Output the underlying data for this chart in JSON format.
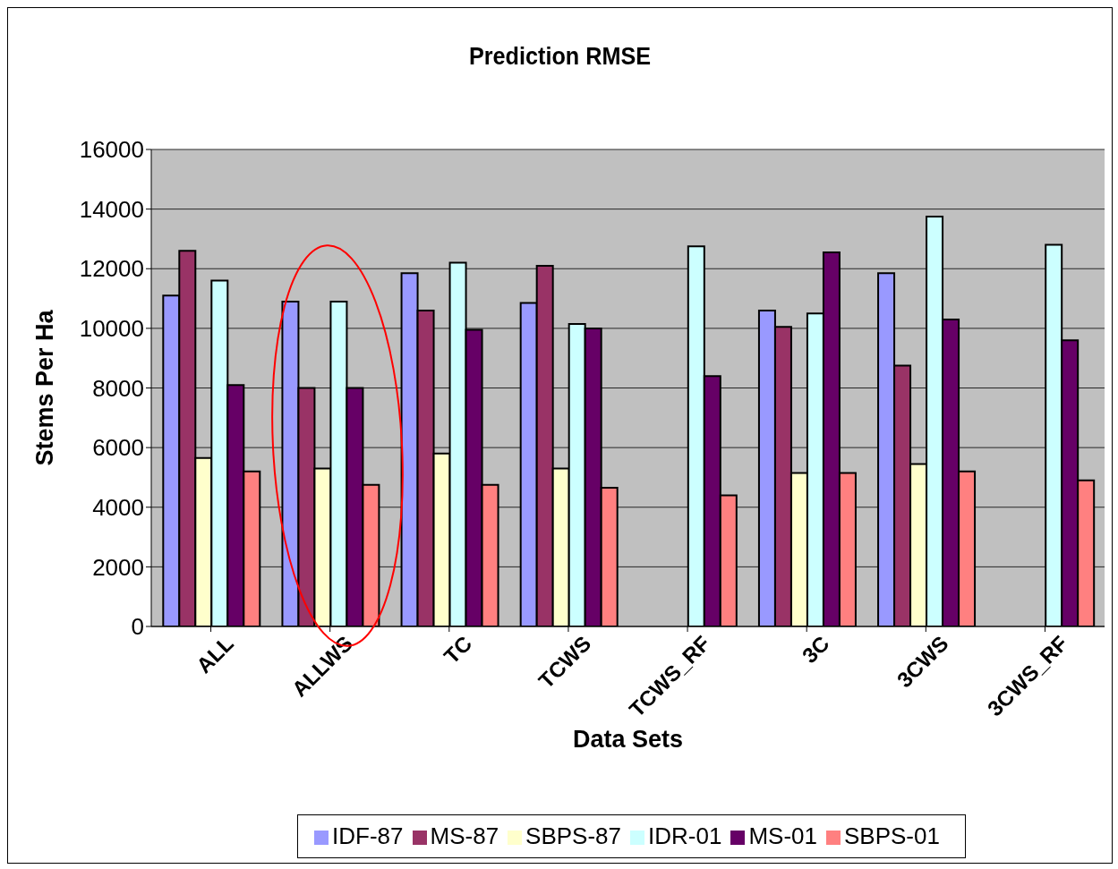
{
  "chart_data": {
    "type": "bar",
    "title": "Prediction RMSE",
    "xlabel": "Data Sets",
    "ylabel": "Stems Per Ha",
    "categories": [
      "ALL",
      "ALLWS",
      "TC",
      "TCWS",
      "TCWS_RF",
      "3C",
      "3CWS",
      "3CWS_RF"
    ],
    "series": [
      {
        "name": "IDF-87",
        "color": "#9999ff",
        "values": [
          11100,
          10900,
          11850,
          10850,
          null,
          10600,
          11850,
          null
        ]
      },
      {
        "name": "MS-87",
        "color": "#993366",
        "values": [
          12600,
          8000,
          10600,
          12100,
          null,
          10050,
          8750,
          null
        ]
      },
      {
        "name": "SBPS-87",
        "color": "#ffffcc",
        "values": [
          5650,
          5300,
          5800,
          5300,
          null,
          5150,
          5450,
          null
        ]
      },
      {
        "name": "IDR-01",
        "color": "#ccffff",
        "values": [
          11600,
          10900,
          12200,
          10150,
          12750,
          10500,
          13750,
          12800
        ]
      },
      {
        "name": "MS-01",
        "color": "#660066",
        "values": [
          8100,
          8000,
          9950,
          10000,
          8400,
          12550,
          10300,
          9600
        ]
      },
      {
        "name": "SBPS-01",
        "color": "#ff8080",
        "values": [
          5200,
          4750,
          4750,
          4650,
          4400,
          5150,
          5200,
          4900
        ]
      }
    ],
    "ylim": [
      0,
      16000
    ],
    "yticks": [
      0,
      2000,
      4000,
      6000,
      8000,
      10000,
      12000,
      14000,
      16000
    ],
    "grid": "y",
    "legend": "bottom"
  }
}
